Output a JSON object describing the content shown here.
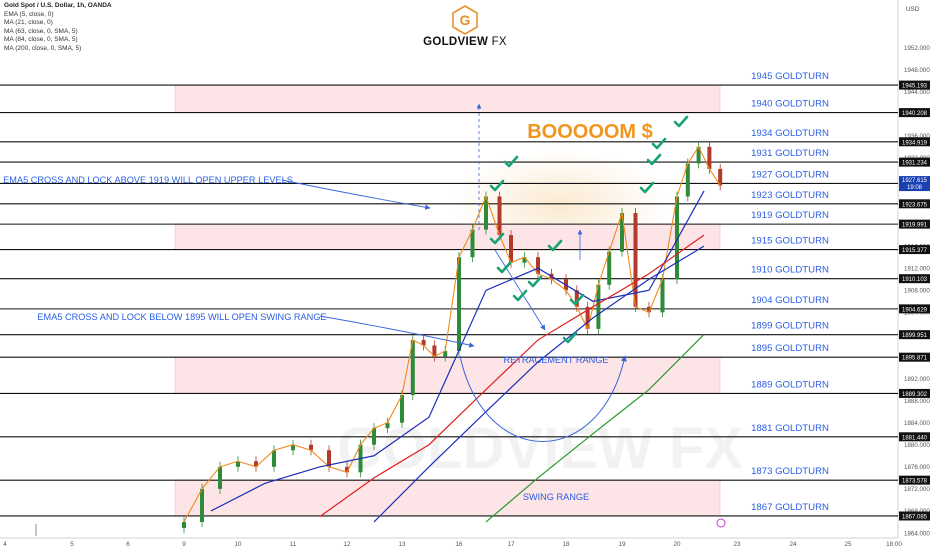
{
  "header": {
    "symbol_line": "Gold Spot / U.S. Dollar, 1h, OANDA",
    "indicators": [
      "EMA (5, close, 0)",
      "MA (21, close, 0)",
      "MA (63, close, 0, SMA, 5)",
      "MA (84, close, 0, SMA, 5)",
      "MA (200, close, 0, SMA, 5)"
    ]
  },
  "logo": {
    "brand": "GOLDVIEW",
    "suffix": "FX",
    "glyph": "G",
    "color": "#e8902a"
  },
  "watermark": "GOLDVIEW FX",
  "axis": {
    "currency": "USD",
    "ylim": [
      1864,
      1955
    ]
  },
  "y_ticks": [
    1952.0,
    1948.0,
    1944.0,
    1940.0,
    1936.0,
    1932.0,
    1928.0,
    1924.0,
    1920.0,
    1916.0,
    1912.0,
    1908.0,
    1904.0,
    1900.0,
    1896.0,
    1892.0,
    1888.0,
    1884.0,
    1880.0,
    1876.0,
    1872.0,
    1868.0,
    1864.0
  ],
  "x_ticks": [
    "4",
    "5",
    "6",
    "9",
    "10",
    "11",
    "12",
    "13",
    "16",
    "17",
    "18",
    "19",
    "20",
    "23",
    "24",
    "25",
    "18:00"
  ],
  "chart_data": {
    "type": "line",
    "title": "Gold Spot / U.S. Dollar, 1h, OANDA",
    "levels": [
      {
        "price": 1945.193,
        "label": "1945 GOLDTURN",
        "tag": "1945.193"
      },
      {
        "price": 1940.208,
        "label": "1940 GOLDTURN",
        "tag": "1940.208"
      },
      {
        "price": 1934.919,
        "label": "1934 GOLDTURN",
        "tag": "1934.919"
      },
      {
        "price": 1931.234,
        "label": "1931 GOLDTURN",
        "tag": "1931.234"
      },
      {
        "price": 1927.36,
        "label": "1927 GOLDTURN",
        "tag": "1927.360"
      },
      {
        "price": 1923.675,
        "label": "1923 GOLDTURN",
        "tag": "1923.675"
      },
      {
        "price": 1919.991,
        "label": "1919 GOLDTURN",
        "tag": "1919.991"
      },
      {
        "price": 1915.377,
        "label": "1915 GOLDTURN",
        "tag": "1915.377"
      },
      {
        "price": 1910.103,
        "label": "1910 GOLDTURN",
        "tag": "1910.103"
      },
      {
        "price": 1904.629,
        "label": "1904 GOLDTURN",
        "tag": "1904.629"
      },
      {
        "price": 1899.951,
        "label": "1899 GOLDTURN",
        "tag": "1899.951"
      },
      {
        "price": 1895.871,
        "label": "1895 GOLDTURN",
        "tag": "1895.871"
      },
      {
        "price": 1889.302,
        "label": "1889 GOLDTURN",
        "tag": "1889.302"
      },
      {
        "price": 1881.44,
        "label": "1881 GOLDTURN",
        "tag": "1881.440"
      },
      {
        "price": 1873.578,
        "label": "1873 GOLDTURN",
        "tag": "1873.578"
      },
      {
        "price": 1867.085,
        "label": "1867 GOLDTURN",
        "tag": "1867.085"
      }
    ],
    "current_price": {
      "value": "1927.615",
      "time": "19:08"
    },
    "zones": [
      {
        "from": 1940.208,
        "to": 1945.193
      },
      {
        "from": 1915.377,
        "to": 1919.991
      },
      {
        "from": 1889.302,
        "to": 1895.871
      },
      {
        "from": 1867.085,
        "to": 1873.578
      }
    ],
    "dates": [
      "9",
      "10",
      "11",
      "12",
      "13",
      "16",
      "17",
      "18",
      "19",
      "20"
    ],
    "close_series": [
      [
        "9",
        1866
      ],
      [
        "9",
        1872
      ],
      [
        "9",
        1876
      ],
      [
        "10",
        1877
      ],
      [
        "10",
        1876
      ],
      [
        "10",
        1879
      ],
      [
        "11",
        1880
      ],
      [
        "11",
        1879
      ],
      [
        "11",
        1876
      ],
      [
        "12",
        1875
      ],
      [
        "12",
        1880
      ],
      [
        "12",
        1883
      ],
      [
        "12",
        1884
      ],
      [
        "13",
        1889
      ],
      [
        "13",
        1899
      ],
      [
        "13",
        1898
      ],
      [
        "13",
        1896
      ],
      [
        "13",
        1897
      ],
      [
        "16",
        1914
      ],
      [
        "16",
        1919
      ],
      [
        "16",
        1925
      ],
      [
        "16",
        1918
      ],
      [
        "17",
        1913
      ],
      [
        "17",
        1914
      ],
      [
        "17",
        1911
      ],
      [
        "17",
        1910
      ],
      [
        "18",
        1908
      ],
      [
        "18",
        1905
      ],
      [
        "18",
        1901
      ],
      [
        "18",
        1909
      ],
      [
        "18",
        1915
      ],
      [
        "19",
        1922
      ],
      [
        "19",
        1905
      ],
      [
        "19",
        1904
      ],
      [
        "19",
        1910
      ],
      [
        "20",
        1925
      ],
      [
        "20",
        1931
      ],
      [
        "20",
        1934
      ],
      [
        "20",
        1930
      ],
      [
        "20",
        1927
      ]
    ],
    "ma_series": [
      {
        "name": "MA 21",
        "color": "#1c2fb8",
        "points": [
          [
            "9",
            1868
          ],
          [
            "10",
            1873
          ],
          [
            "11",
            1876
          ],
          [
            "12",
            1878
          ],
          [
            "13",
            1885
          ],
          [
            "16",
            1908
          ],
          [
            "17",
            1912
          ],
          [
            "18",
            1906
          ],
          [
            "19",
            1908
          ],
          [
            "20",
            1926
          ]
        ]
      },
      {
        "name": "MA 63",
        "color": "#e02020",
        "points": [
          [
            "11",
            1867
          ],
          [
            "12",
            1874
          ],
          [
            "13",
            1880
          ],
          [
            "16",
            1890
          ],
          [
            "17",
            1899
          ],
          [
            "18",
            1905
          ],
          [
            "19",
            1911
          ],
          [
            "20",
            1918
          ]
        ]
      },
      {
        "name": "MA 84",
        "color": "#1c2fb8",
        "points": [
          [
            "12",
            1866
          ],
          [
            "13",
            1876
          ],
          [
            "16",
            1886
          ],
          [
            "17",
            1895
          ],
          [
            "18",
            1903
          ],
          [
            "19",
            1910
          ],
          [
            "20",
            1916
          ]
        ]
      },
      {
        "name": "MA 200",
        "color": "#2a9a2a",
        "points": [
          [
            "16",
            1866
          ],
          [
            "17",
            1874
          ],
          [
            "18",
            1882
          ],
          [
            "19",
            1890
          ],
          [
            "20",
            1900
          ]
        ]
      }
    ],
    "annotations": {
      "headline": "BOOOOOM $",
      "upper_note": "EMA5 CROSS AND LOCK ABOVE 1919 WILL OPEN UPPER LEVELS",
      "lower_note": "EMA5 CROSS AND LOCK BELOW 1895 WILL OPEN SWING RANGE",
      "retracement": "RETRACEMENT RANGE",
      "swing": "SWING RANGE"
    }
  }
}
